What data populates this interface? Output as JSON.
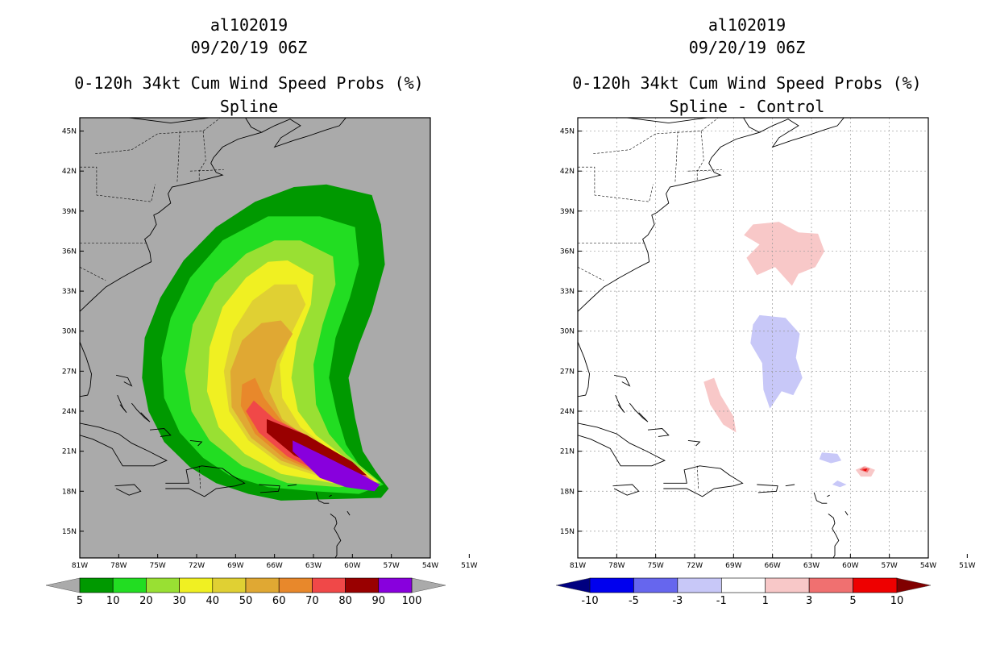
{
  "chart_data": [
    {
      "type": "heatmap",
      "title_lines": [
        "al102019",
        "09/20/19 06Z",
        "0-120h 34kt Cum Wind Speed Probs (%)",
        "Spline"
      ],
      "x_tick_labels": [
        "81W",
        "78W",
        "75W",
        "72W",
        "69W",
        "66W",
        "63W",
        "60W",
        "57W",
        "54W",
        "51W"
      ],
      "y_tick_labels": [
        "15N",
        "18N",
        "21N",
        "24N",
        "27N",
        "30N",
        "33N",
        "36N",
        "39N",
        "42N",
        "45N"
      ],
      "xlim": [
        -81,
        -54
      ],
      "ylim": [
        13,
        46
      ],
      "grid": false,
      "background_color": "#aaaaaa",
      "colorbar": {
        "labels": [
          "5",
          "10",
          "20",
          "30",
          "40",
          "50",
          "60",
          "70",
          "80",
          "90",
          "100"
        ],
        "colors": [
          "#009900",
          "#22dd22",
          "#99e033",
          "#f0f022",
          "#e0d033",
          "#e0a833",
          "#e8882b",
          "#f04848",
          "#990000",
          "#8800dd"
        ],
        "under_color": "#aaaaaa",
        "over_color": "#aaaaaa"
      },
      "contours": [
        {
          "level": 5,
          "color": "#009900",
          "points": [
            [
              -62,
              41
            ],
            [
              -58.5,
              40.2
            ],
            [
              -57.8,
              38
            ],
            [
              -57.5,
              35
            ],
            [
              -58.5,
              31.5
            ],
            [
              -59.5,
              29
            ],
            [
              -60.3,
              26.5
            ],
            [
              -59.8,
              23.5
            ],
            [
              -59.2,
              21
            ],
            [
              -58.2,
              19.5
            ],
            [
              -57.2,
              18.2
            ],
            [
              -57.8,
              17.5
            ],
            [
              -62,
              17.4
            ],
            [
              -65.5,
              17.3
            ],
            [
              -68,
              17.8
            ],
            [
              -70.5,
              18.6
            ],
            [
              -72.5,
              19.8
            ],
            [
              -74.5,
              21.7
            ],
            [
              -75.7,
              24
            ],
            [
              -76.2,
              26.5
            ],
            [
              -76,
              29.5
            ],
            [
              -74.8,
              32.5
            ],
            [
              -73,
              35.3
            ],
            [
              -70.5,
              37.8
            ],
            [
              -67.5,
              39.7
            ],
            [
              -64.5,
              40.8
            ]
          ]
        },
        {
          "level": 10,
          "color": "#22dd22",
          "points": [
            [
              -62.5,
              38.6
            ],
            [
              -59.8,
              37.8
            ],
            [
              -59.5,
              35
            ],
            [
              -60.2,
              32.5
            ],
            [
              -61.3,
              29.5
            ],
            [
              -61.8,
              26.5
            ],
            [
              -61.2,
              23.8
            ],
            [
              -60.5,
              21.5
            ],
            [
              -59.5,
              20
            ],
            [
              -57.6,
              18.5
            ],
            [
              -59.5,
              17.8
            ],
            [
              -63,
              18
            ],
            [
              -66.5,
              18.3
            ],
            [
              -69.5,
              19.2
            ],
            [
              -71.5,
              20.5
            ],
            [
              -73.3,
              22.4
            ],
            [
              -74.5,
              25
            ],
            [
              -74.7,
              28
            ],
            [
              -74,
              31
            ],
            [
              -72.5,
              34
            ],
            [
              -70,
              36.8
            ],
            [
              -66.5,
              38.6
            ]
          ]
        },
        {
          "level": 20,
          "color": "#99e033",
          "points": [
            [
              -64,
              36.8
            ],
            [
              -61.5,
              35.6
            ],
            [
              -61.3,
              33.5
            ],
            [
              -62.3,
              30.5
            ],
            [
              -63,
              27.5
            ],
            [
              -62.8,
              24.5
            ],
            [
              -61.8,
              22.3
            ],
            [
              -60.5,
              20.8
            ],
            [
              -57.8,
              18.6
            ],
            [
              -61,
              18.3
            ],
            [
              -65,
              18.6
            ],
            [
              -68.5,
              19.9
            ],
            [
              -71,
              21.8
            ],
            [
              -72.4,
              24
            ],
            [
              -72.9,
              27
            ],
            [
              -72.3,
              30.5
            ],
            [
              -70.6,
              33.6
            ],
            [
              -68.2,
              35.8
            ],
            [
              -66,
              36.8
            ]
          ]
        },
        {
          "level": 30,
          "color": "#f0f022",
          "points": [
            [
              -65,
              35.3
            ],
            [
              -63,
              34.2
            ],
            [
              -63.2,
              32
            ],
            [
              -64.3,
              29.2
            ],
            [
              -64.7,
              26.5
            ],
            [
              -64.2,
              24
            ],
            [
              -62.8,
              22.2
            ],
            [
              -61.2,
              21
            ],
            [
              -58,
              18.7
            ],
            [
              -61.5,
              18.6
            ],
            [
              -65.5,
              19.3
            ],
            [
              -68.3,
              20.8
            ],
            [
              -70.3,
              22.8
            ],
            [
              -71.2,
              25.5
            ],
            [
              -71,
              28.8
            ],
            [
              -70,
              31.8
            ],
            [
              -68.2,
              34
            ],
            [
              -66.5,
              35.2
            ]
          ]
        },
        {
          "level": 40,
          "color": "#e0d033",
          "points": [
            [
              -64.3,
              33.5
            ],
            [
              -63.6,
              32
            ],
            [
              -64.8,
              29.6
            ],
            [
              -65.6,
              27.5
            ],
            [
              -65.4,
              25
            ],
            [
              -64,
              22.8
            ],
            [
              -62,
              21.3
            ],
            [
              -58.3,
              18.8
            ],
            [
              -61.8,
              18.9
            ],
            [
              -65.5,
              20
            ],
            [
              -68,
              21.8
            ],
            [
              -69.5,
              24
            ],
            [
              -69.9,
              27
            ],
            [
              -69.2,
              30
            ],
            [
              -67.7,
              32.3
            ],
            [
              -66,
              33.5
            ]
          ]
        },
        {
          "level": 50,
          "color": "#e0a833",
          "points": [
            [
              -65.5,
              30.8
            ],
            [
              -64.6,
              29.8
            ],
            [
              -65.8,
              27.8
            ],
            [
              -66.4,
              25.5
            ],
            [
              -65.4,
              23.4
            ],
            [
              -63.2,
              21.8
            ],
            [
              -58.5,
              18.9
            ],
            [
              -62,
              19.1
            ],
            [
              -65.5,
              20.3
            ],
            [
              -67.8,
              22
            ],
            [
              -69.3,
              24.3
            ],
            [
              -69.4,
              27
            ],
            [
              -68.5,
              29.3
            ],
            [
              -67,
              30.6
            ]
          ]
        },
        {
          "level": 60,
          "color": "#e8882b",
          "points": [
            [
              -67.5,
              26.5
            ],
            [
              -66.8,
              25
            ],
            [
              -65.4,
              23.2
            ],
            [
              -63,
              21.8
            ],
            [
              -58.7,
              19
            ],
            [
              -62.2,
              19.2
            ],
            [
              -65.3,
              20.5
            ],
            [
              -67.5,
              22.3
            ],
            [
              -68.6,
              24.4
            ],
            [
              -68.5,
              26
            ]
          ]
        },
        {
          "level": 70,
          "color": "#f04848",
          "points": [
            [
              -67.6,
              24.8
            ],
            [
              -66,
              23.4
            ],
            [
              -63.5,
              22.2
            ],
            [
              -58.8,
              19.1
            ],
            [
              -62.2,
              19.3
            ],
            [
              -65,
              20.6
            ],
            [
              -67.2,
              22.4
            ],
            [
              -68.2,
              24
            ]
          ]
        },
        {
          "level": 80,
          "color": "#990000",
          "points": [
            [
              -66.6,
              23.4
            ],
            [
              -63.5,
              22.2
            ],
            [
              -60,
              20.2
            ],
            [
              -58.9,
              19.2
            ],
            [
              -62,
              19.5
            ],
            [
              -64.5,
              20.7
            ],
            [
              -66.6,
              22.4
            ]
          ]
        },
        {
          "level": 90,
          "color": "#8800dd",
          "points": [
            [
              -64.6,
              21.8
            ],
            [
              -62.5,
              20.8
            ],
            [
              -59.4,
              19.3
            ],
            [
              -57.9,
              18.5
            ],
            [
              -58.3,
              18
            ],
            [
              -60.5,
              18.3
            ],
            [
              -62.5,
              19
            ],
            [
              -64.6,
              21
            ]
          ]
        }
      ]
    },
    {
      "type": "heatmap",
      "title_lines": [
        "al102019",
        "09/20/19 06Z",
        "0-120h 34kt Cum Wind Speed Probs (%)",
        "Spline - Control"
      ],
      "x_tick_labels": [
        "81W",
        "78W",
        "75W",
        "72W",
        "69W",
        "66W",
        "63W",
        "60W",
        "57W",
        "54W",
        "51W"
      ],
      "y_tick_labels": [
        "15N",
        "18N",
        "21N",
        "24N",
        "27N",
        "30N",
        "33N",
        "36N",
        "39N",
        "42N",
        "45N"
      ],
      "xlim": [
        -81,
        -54
      ],
      "ylim": [
        13,
        46
      ],
      "grid": true,
      "background_color": "#ffffff",
      "colorbar": {
        "labels": [
          "-10",
          "-5",
          "-3",
          "-1",
          "1",
          "3",
          "5",
          "10"
        ],
        "colors": [
          "#0000ee",
          "#6666ee",
          "#c8c8f8",
          "#ffffff",
          "#f8c8c8",
          "#f07070",
          "#ee0000"
        ],
        "under_color": "#000080",
        "over_color": "#800000"
      },
      "contours": [
        {
          "level": 1,
          "color": "#f8c8c8",
          "points": [
            [
              -67.5,
              38
            ],
            [
              -65.5,
              38.2
            ],
            [
              -64,
              37.4
            ],
            [
              -62.5,
              37.3
            ],
            [
              -62,
              36
            ],
            [
              -62.7,
              34.8
            ],
            [
              -64,
              34.3
            ],
            [
              -64.5,
              33.4
            ],
            [
              -65.8,
              34.8
            ],
            [
              -67.2,
              34.2
            ],
            [
              -68,
              35.5
            ],
            [
              -67,
              36.5
            ],
            [
              -68.2,
              37.2
            ]
          ]
        },
        {
          "level": 1,
          "color": "#f8c8c8",
          "points": [
            [
              -70.5,
              26.5
            ],
            [
              -70,
              25.2
            ],
            [
              -69,
              23.6
            ],
            [
              -68.8,
              22.4
            ],
            [
              -69.8,
              23
            ],
            [
              -70.8,
              24.5
            ],
            [
              -71.3,
              26.2
            ]
          ]
        },
        {
          "level": 1,
          "color": "#f8c8c8",
          "points": [
            [
              -59.6,
              19.6
            ],
            [
              -59.2,
              19.1
            ],
            [
              -58.4,
              19.1
            ],
            [
              -58.1,
              19.6
            ],
            [
              -58.9,
              19.9
            ]
          ]
        },
        {
          "level": -1,
          "color": "#c8c8f8",
          "points": [
            [
              -67,
              31.2
            ],
            [
              -65,
              31
            ],
            [
              -63.9,
              29.8
            ],
            [
              -64.2,
              28
            ],
            [
              -63.7,
              26.5
            ],
            [
              -64.4,
              25.2
            ],
            [
              -65.3,
              25.5
            ],
            [
              -66.2,
              24.2
            ],
            [
              -66.7,
              25.6
            ],
            [
              -66.8,
              27.6
            ],
            [
              -67.7,
              29.1
            ],
            [
              -67.5,
              30.5
            ]
          ]
        },
        {
          "level": -1,
          "color": "#c8c8f8",
          "points": [
            [
              -62.2,
              20.9
            ],
            [
              -61,
              20.8
            ],
            [
              -60.7,
              20.3
            ],
            [
              -61.5,
              20.1
            ],
            [
              -62.4,
              20.4
            ]
          ]
        },
        {
          "level": -1,
          "color": "#c8c8f8",
          "points": [
            [
              -61,
              18.8
            ],
            [
              -60.3,
              18.5
            ],
            [
              -60.8,
              18.3
            ],
            [
              -61.4,
              18.5
            ]
          ]
        },
        {
          "level": 3,
          "color": "#f07070",
          "points": [
            [
              -59.3,
              19.6
            ],
            [
              -58.7,
              19.4
            ],
            [
              -58.5,
              19.7
            ],
            [
              -59,
              19.8
            ]
          ]
        },
        {
          "level": 5,
          "color": "#ee0000",
          "points": [
            [
              -59.1,
              19.6
            ],
            [
              -58.8,
              19.5
            ],
            [
              -58.7,
              19.7
            ]
          ]
        }
      ]
    }
  ]
}
